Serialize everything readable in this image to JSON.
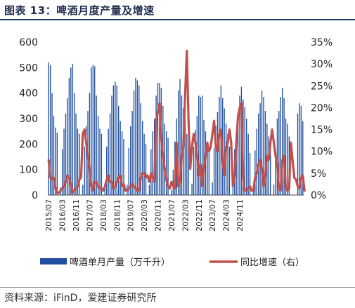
{
  "header": {
    "title": "图表 13：啤酒月度产量及增速"
  },
  "footer": {
    "source": "资料来源：iFinD，爱建证券研究所"
  },
  "chart_data": {
    "type": "bar+line",
    "title": "图表 13：啤酒月度产量及增速",
    "xlabel": "",
    "ylabel_left": "",
    "ylabel_right": "",
    "ylim_left": [
      0,
      600
    ],
    "ylim_right": [
      0,
      35
    ],
    "yticks_left": [
      "0",
      "100",
      "200",
      "300",
      "400",
      "500",
      "600"
    ],
    "yticks_right": [
      "0%",
      "5%",
      "10%",
      "15%",
      "20%",
      "25%",
      "30%",
      "35%"
    ],
    "xtick_labels": [
      "2015/07",
      "2016/03",
      "2016/11",
      "2017/07",
      "2018/03",
      "2018/11",
      "2019/07",
      "2020/03",
      "2020/11",
      "2021/07",
      "2022/03",
      "2022/11",
      "2023/07",
      "2024/03",
      "2024/11"
    ],
    "x_start": "2015/07",
    "x_end": "2024/12",
    "legend_position": "bottom",
    "grid": false,
    "series": [
      {
        "name": "啤酒单月产量（万千升）",
        "type": "bar",
        "axis": "left",
        "color": "#1f4e9e",
        "values": [
          520,
          510,
          400,
          310,
          265,
          245,
          0,
          30,
          180,
          260,
          320,
          380,
          460,
          500,
          515,
          400,
          320,
          260,
          240,
          0,
          40,
          190,
          270,
          330,
          400,
          500,
          510,
          505,
          390,
          310,
          260,
          240,
          0,
          40,
          190,
          260,
          320,
          390,
          430,
          445,
          430,
          350,
          290,
          250,
          220,
          0,
          40,
          185,
          270,
          330,
          410,
          460,
          450,
          430,
          360,
          290,
          240,
          200,
          0,
          40,
          180,
          250,
          300,
          390,
          440,
          440,
          420,
          350,
          280,
          250,
          225,
          0,
          20,
          100,
          210,
          300,
          410,
          455,
          390,
          340,
          300,
          240,
          220,
          0,
          45,
          190,
          255,
          310,
          390,
          385,
          390,
          295,
          250,
          200,
          180,
          0,
          50,
          185,
          270,
          325,
          385,
          430,
          380,
          340,
          280,
          240,
          190,
          0,
          40,
          180,
          255,
          290,
          390,
          425,
          375,
          345,
          300,
          240,
          165,
          0,
          40,
          175,
          260,
          320,
          360,
          410,
          385,
          330,
          280,
          230,
          180,
          0,
          40,
          170,
          300,
          330,
          385,
          420,
          380,
          300,
          280,
          230,
          0,
          0,
          0,
          0,
          320,
          360,
          350,
          290
        ]
      },
      {
        "name": "同比增速（右）",
        "type": "line",
        "axis": "right",
        "color": "#c0504d",
        "values": [
          8,
          4,
          3.5,
          4,
          1.5,
          0.5,
          0.5,
          1,
          1.5,
          2,
          3,
          4.5,
          4,
          2.5,
          0.5,
          1,
          1.5,
          2,
          3.5,
          4,
          14,
          15,
          12,
          9,
          6,
          2,
          1,
          3,
          3,
          2,
          1.5,
          1.5,
          1,
          2,
          3.5,
          4.5,
          3,
          3,
          1.5,
          2,
          3,
          4,
          4.5,
          2,
          2.5,
          1,
          1,
          1.5,
          2,
          2.5,
          2,
          1.5,
          1,
          1,
          4,
          5,
          5,
          4,
          4.5,
          3,
          5,
          4,
          3,
          17,
          19,
          21,
          13,
          9,
          6,
          3.5,
          2,
          1.5,
          3,
          2,
          1.5,
          12,
          2,
          3,
          9,
          11,
          23,
          33,
          17,
          6,
          11,
          14,
          12,
          9,
          4.5,
          7,
          2,
          6,
          9,
          12,
          10,
          11,
          14,
          17,
          11,
          10,
          14,
          15,
          8,
          4.5,
          11,
          12,
          15,
          12,
          2,
          4.5,
          12,
          18,
          20,
          21,
          4,
          1,
          1,
          1.5,
          2,
          1,
          1,
          4,
          5,
          7,
          8,
          6,
          2,
          4.5,
          9,
          8,
          12,
          15,
          12,
          9,
          7,
          1.5,
          1,
          8,
          9,
          1.5,
          1,
          1.5,
          12,
          8,
          4,
          3.5,
          2,
          1.5,
          4,
          4.5,
          1
        ]
      }
    ]
  }
}
